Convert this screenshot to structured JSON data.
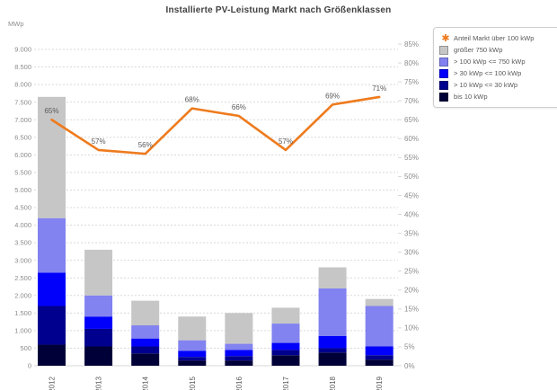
{
  "title": "Installierte PV-Leistung Markt nach Größenklassen",
  "axes": {
    "left_unit": "MWp",
    "left_min": 0,
    "left_max": 9000,
    "left_step": 500,
    "right_min": 0,
    "right_max": 85,
    "right_step": 5,
    "right_suffix": "%"
  },
  "colors": {
    "line": "#ee7b1e",
    "grid": "#d9d9d9",
    "tick_label": "#8c8c8c",
    "data_label": "#595959",
    "year_label": "#595959"
  },
  "chart_data": {
    "type": "bar",
    "subtype": "stacked-bar-with-line",
    "title": "Installierte PV-Leistung Markt nach Größenklassen",
    "categories": [
      "2012",
      "2013",
      "2014",
      "2015",
      "2016",
      "2017",
      "2018",
      "2019"
    ],
    "ylabel": "MWp",
    "left_axis": {
      "min": 0,
      "max": 9000,
      "step": 500,
      "unit": "MWp",
      "grid": true
    },
    "right_axis": {
      "min": 0,
      "max": 85,
      "step": 5,
      "unit": "%"
    },
    "legend_position": "top-right",
    "series": [
      {
        "name": "bis 10 kWp",
        "color": "#000038",
        "values": [
          600,
          550,
          350,
          150,
          150,
          300,
          375,
          175
        ]
      },
      {
        "name": "> 10 kWp <= 30 kWp",
        "color": "#00008e",
        "values": [
          1100,
          500,
          200,
          100,
          125,
          150,
          125,
          125
        ]
      },
      {
        "name": "> 30 kWp <= 100 kWp",
        "color": "#0000fb",
        "values": [
          950,
          350,
          225,
          175,
          175,
          200,
          350,
          250
        ]
      },
      {
        "name": "> 100 kWp <= 750 kWp",
        "color": "#8282f0",
        "values": [
          1550,
          600,
          375,
          300,
          175,
          550,
          1350,
          1150
        ]
      },
      {
        "name": "größer 750 kWp",
        "color": "#c6c6c6",
        "values": [
          3450,
          1300,
          700,
          675,
          875,
          450,
          600,
          200
        ]
      }
    ],
    "bar_totals": [
      7650,
      3300,
      1850,
      1400,
      1500,
      1650,
      2800,
      1900
    ],
    "line_series": {
      "name": "Anteil Markt über 100 kWp",
      "color": "#ee7b1e",
      "unit": "%",
      "values": [
        65,
        57,
        56,
        68,
        66,
        57,
        69,
        71
      ],
      "labels": [
        "65%",
        "57%",
        "56%",
        "68%",
        "66%",
        "57%",
        "69%",
        "71%"
      ]
    }
  },
  "legend": {
    "items": [
      {
        "label": "Anteil Markt über 100 kWp",
        "swatch": "star",
        "color": "#ee7b1e",
        "glyph": "✱"
      },
      {
        "label": "größer 750 kWp",
        "swatch": "square",
        "color": "#c6c6c6"
      },
      {
        "label": "> 100 kWp <= 750 kWp",
        "swatch": "square",
        "color": "#8282f0"
      },
      {
        "label": "> 30 kWp <= 100 kWp",
        "swatch": "square",
        "color": "#0000fb"
      },
      {
        "label": "> 10 kWp <= 30 kWp",
        "swatch": "square",
        "color": "#00008e"
      },
      {
        "label": "bis 10 kWp",
        "swatch": "square",
        "color": "#000038"
      }
    ]
  }
}
